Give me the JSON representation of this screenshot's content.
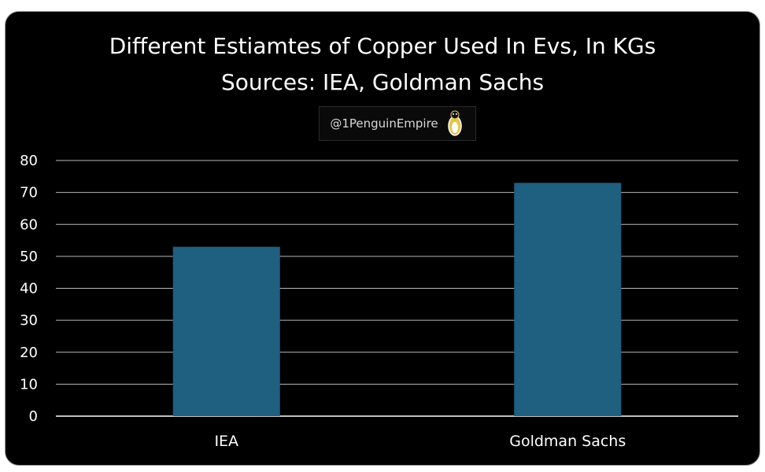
{
  "chart_data": {
    "type": "bar",
    "title": "Different Estiamtes of Copper Used In Evs, In KGs",
    "subtitle": "Sources: IEA, Goldman Sachs",
    "watermark": "@1PenguinEmpire",
    "categories": [
      "IEA",
      "Goldman Sachs"
    ],
    "values": [
      53,
      73
    ],
    "ylim": [
      0,
      80
    ],
    "yticks": [
      0,
      10,
      20,
      30,
      40,
      50,
      60,
      70,
      80
    ],
    "grid": true,
    "bar_color": "#1f5f80",
    "background": "#000000",
    "gridline_color": "#d9d9d9"
  }
}
